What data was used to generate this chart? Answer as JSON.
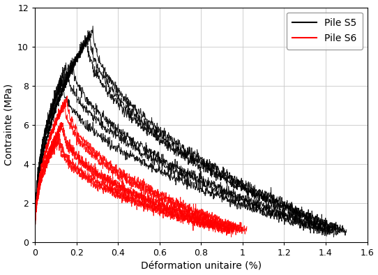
{
  "xlabel": "Déformation unitaire (%)",
  "ylabel": "Contrainte (MPa)",
  "xlim": [
    0,
    1.6
  ],
  "ylim": [
    0,
    12
  ],
  "xticks": [
    0,
    0.2,
    0.4,
    0.6,
    0.8,
    1.0,
    1.2,
    1.4,
    1.6
  ],
  "yticks": [
    0,
    2,
    4,
    6,
    8,
    10,
    12
  ],
  "legend_labels": [
    "Pile S5",
    "Pile S6"
  ],
  "legend_colors": [
    "#000000",
    "#ff0000"
  ],
  "color_s5": "#000000",
  "color_s6": "#ff0000",
  "background_color": "#ffffff",
  "grid_color": "#c8c8c8",
  "s5_curves": [
    {
      "peak_x": 0.28,
      "peak_y": 10.85,
      "end_x": 1.5,
      "end_y": 0.55,
      "rise_exp": 0.45,
      "fall_exp": 0.52
    },
    {
      "peak_x": 0.265,
      "peak_y": 10.6,
      "end_x": 1.48,
      "end_y": 0.55,
      "rise_exp": 0.45,
      "fall_exp": 0.52
    },
    {
      "peak_x": 0.25,
      "peak_y": 10.4,
      "end_x": 1.46,
      "end_y": 0.55,
      "rise_exp": 0.45,
      "fall_exp": 0.52
    },
    {
      "peak_x": 0.18,
      "peak_y": 9.25,
      "end_x": 1.44,
      "end_y": 0.55,
      "rise_exp": 0.42,
      "fall_exp": 0.52
    },
    {
      "peak_x": 0.15,
      "peak_y": 9.0,
      "end_x": 1.42,
      "end_y": 0.55,
      "rise_exp": 0.42,
      "fall_exp": 0.52
    },
    {
      "peak_x": 0.13,
      "peak_y": 8.2,
      "end_x": 1.4,
      "end_y": 0.55,
      "rise_exp": 0.4,
      "fall_exp": 0.52
    }
  ],
  "s6_curves": [
    {
      "peak_x": 0.155,
      "peak_y": 7.35,
      "end_x": 1.02,
      "end_y": 0.6,
      "rise_exp": 0.42,
      "fall_exp": 0.48
    },
    {
      "peak_x": 0.145,
      "peak_y": 7.1,
      "end_x": 1.0,
      "end_y": 0.6,
      "rise_exp": 0.42,
      "fall_exp": 0.48
    },
    {
      "peak_x": 0.135,
      "peak_y": 6.05,
      "end_x": 0.98,
      "end_y": 0.6,
      "rise_exp": 0.4,
      "fall_exp": 0.48
    },
    {
      "peak_x": 0.13,
      "peak_y": 5.95,
      "end_x": 0.96,
      "end_y": 0.6,
      "rise_exp": 0.4,
      "fall_exp": 0.48
    },
    {
      "peak_x": 0.12,
      "peak_y": 5.4,
      "end_x": 0.94,
      "end_y": 0.6,
      "rise_exp": 0.38,
      "fall_exp": 0.48
    },
    {
      "peak_x": 0.115,
      "peak_y": 5.2,
      "end_x": 0.92,
      "end_y": 0.6,
      "rise_exp": 0.38,
      "fall_exp": 0.48
    }
  ],
  "noise_amp_s5": 0.13,
  "noise_amp_s6": 0.12,
  "n_rise": 300,
  "n_fall": 800,
  "linewidth": 0.7
}
